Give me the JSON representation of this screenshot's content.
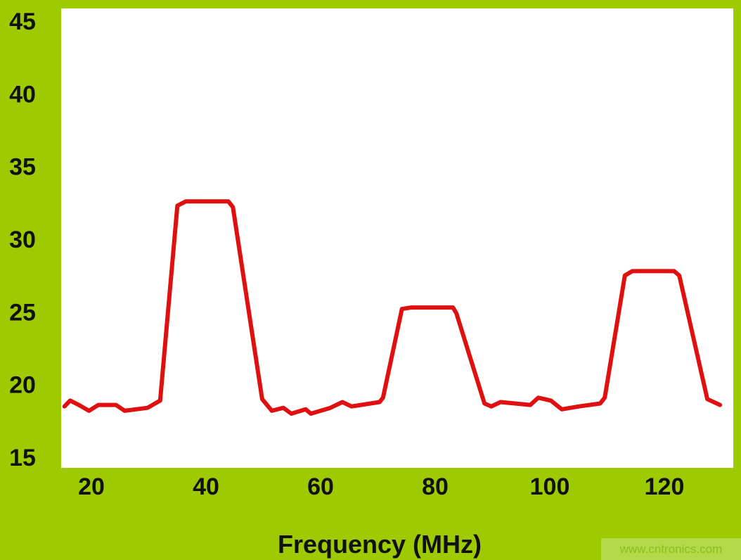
{
  "chart_data": {
    "type": "line",
    "title": "",
    "xlabel": "Frequency (MHz)",
    "ylabel": "",
    "xlim": [
      14.7,
      130.8
    ],
    "ylim": [
      15,
      45.5
    ],
    "xticks": [
      20,
      40,
      60,
      80,
      100,
      120
    ],
    "yticks": [
      15,
      20,
      25,
      30,
      35,
      40,
      45
    ],
    "grid": false,
    "legend": "none",
    "colors": {
      "background": "#9dcb00",
      "plot_area": "#ffffff",
      "line": "#e01010"
    },
    "series": [
      {
        "x": [
          15.3,
          16.3,
          17.8,
          19.6,
          21.2,
          24.3,
          25.8,
          29.8,
          32.0,
          35.0,
          36.5,
          43.9,
          44.7,
          49.8,
          51.5,
          53.5,
          54.9,
          57.4,
          58.3,
          61.7,
          63.8,
          65.4,
          70.3,
          70.9,
          74.2,
          75.8,
          83.1,
          83.7,
          88.6,
          89.8,
          91.4,
          96.6,
          98.0,
          100.2,
          102.1,
          105.1,
          108.8,
          109.6,
          113.1,
          114.4,
          121.7,
          122.6,
          127.5,
          129.7
        ],
        "y": [
          18.5,
          18.9,
          18.6,
          18.2,
          18.6,
          18.6,
          18.2,
          18.4,
          18.9,
          32.3,
          32.6,
          32.6,
          32.2,
          19.0,
          18.2,
          18.4,
          18.0,
          18.3,
          18.0,
          18.4,
          18.8,
          18.5,
          18.8,
          19.1,
          25.2,
          25.3,
          25.3,
          24.9,
          18.7,
          18.5,
          18.8,
          18.6,
          19.1,
          18.9,
          18.3,
          18.5,
          18.7,
          19.1,
          27.5,
          27.8,
          27.8,
          27.5,
          19.0,
          18.6
        ]
      }
    ]
  },
  "watermark": "www.cntronics.com"
}
